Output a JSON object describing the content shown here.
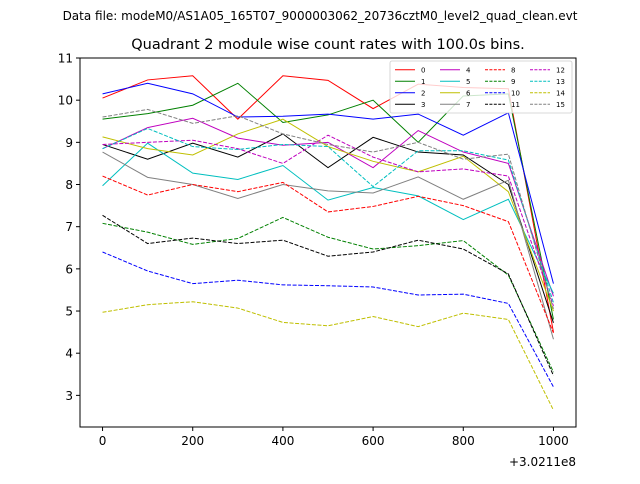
{
  "figure": {
    "suptitle": "Data file: modeM0/AS1A05_165T07_9000003062_20736cztM0_level2_quad_clean.evt"
  },
  "chart_data": {
    "type": "line",
    "title": "Quadrant 2 module wise count rates with 100.0s bins.",
    "xlabel": "",
    "ylabel": "",
    "x_offset_label": "+3.0211e8",
    "x": [
      0,
      100,
      200,
      300,
      400,
      500,
      600,
      700,
      800,
      900,
      1000
    ],
    "xlim": [
      -50,
      1050
    ],
    "ylim": [
      2.25,
      11.0
    ],
    "xticks": [
      0,
      200,
      400,
      600,
      800,
      1000
    ],
    "yticks": [
      3,
      4,
      5,
      6,
      7,
      8,
      9,
      10,
      11
    ],
    "grid": false,
    "legend": {
      "placement": "upper-right",
      "columns": 4
    },
    "series": [
      {
        "name": "0",
        "color": "#ff0000",
        "dash": "solid",
        "values": [
          10.05,
          10.48,
          10.58,
          9.55,
          10.58,
          10.47,
          9.8,
          10.38,
          10.3,
          10.27,
          4.5
        ]
      },
      {
        "name": "1",
        "color": "#008000",
        "dash": "solid",
        "values": [
          9.55,
          9.68,
          9.88,
          10.4,
          9.47,
          9.65,
          10.0,
          9.0,
          10.1,
          10.15,
          4.8
        ]
      },
      {
        "name": "2",
        "color": "#0000ff",
        "dash": "solid",
        "values": [
          10.15,
          10.4,
          10.15,
          9.6,
          9.62,
          9.67,
          9.55,
          9.67,
          9.17,
          9.7,
          5.65
        ]
      },
      {
        "name": "3",
        "color": "#000000",
        "dash": "solid",
        "values": [
          8.95,
          8.6,
          8.98,
          8.65,
          9.2,
          8.4,
          9.12,
          8.77,
          8.7,
          8.0,
          4.72
        ]
      },
      {
        "name": "4",
        "color": "#bf00bf",
        "dash": "solid",
        "values": [
          8.85,
          9.35,
          9.57,
          9.1,
          8.93,
          9.0,
          8.4,
          9.28,
          8.77,
          8.5,
          5.35
        ]
      },
      {
        "name": "5",
        "color": "#00bfbf",
        "dash": "solid",
        "values": [
          7.97,
          8.98,
          8.27,
          8.12,
          8.45,
          7.63,
          7.93,
          7.73,
          7.17,
          7.65,
          5.42
        ]
      },
      {
        "name": "6",
        "color": "#bfbf00",
        "dash": "solid",
        "values": [
          9.13,
          8.85,
          8.7,
          9.2,
          9.55,
          8.9,
          8.55,
          8.3,
          8.67,
          7.83,
          5.0
        ]
      },
      {
        "name": "7",
        "color": "#808080",
        "dash": "solid",
        "values": [
          8.77,
          8.17,
          8.0,
          7.67,
          8.0,
          7.85,
          7.8,
          8.18,
          7.65,
          8.1,
          4.33
        ]
      },
      {
        "name": "8",
        "color": "#ff0000",
        "dash": "dashed",
        "values": [
          8.2,
          7.75,
          8.0,
          7.83,
          8.05,
          7.35,
          7.48,
          7.72,
          7.5,
          7.12,
          4.48
        ]
      },
      {
        "name": "9",
        "color": "#008000",
        "dash": "dashed",
        "values": [
          7.08,
          6.87,
          6.58,
          6.72,
          7.22,
          6.75,
          6.47,
          6.55,
          6.67,
          5.85,
          3.55
        ]
      },
      {
        "name": "10",
        "color": "#0000ff",
        "dash": "dashed",
        "values": [
          6.4,
          5.95,
          5.65,
          5.73,
          5.62,
          5.6,
          5.57,
          5.38,
          5.4,
          5.18,
          3.2
        ]
      },
      {
        "name": "11",
        "color": "#000000",
        "dash": "dashed",
        "values": [
          7.27,
          6.6,
          6.73,
          6.6,
          6.68,
          6.3,
          6.4,
          6.68,
          6.47,
          5.88,
          3.47
        ]
      },
      {
        "name": "12",
        "color": "#bf00bf",
        "dash": "dashed",
        "values": [
          8.95,
          9.0,
          9.05,
          8.85,
          8.5,
          9.17,
          8.65,
          8.3,
          8.37,
          8.2,
          5.12
        ]
      },
      {
        "name": "13",
        "color": "#00bfbf",
        "dash": "dashed",
        "values": [
          8.85,
          9.33,
          8.9,
          8.83,
          8.95,
          8.9,
          7.95,
          8.8,
          8.8,
          8.58,
          5.2
        ]
      },
      {
        "name": "14",
        "color": "#bfbf00",
        "dash": "dashed",
        "values": [
          4.97,
          5.15,
          5.22,
          5.07,
          4.73,
          4.65,
          4.87,
          4.63,
          4.95,
          4.8,
          2.65
        ]
      },
      {
        "name": "15",
        "color": "#808080",
        "dash": "dashed",
        "values": [
          9.6,
          9.78,
          9.45,
          9.63,
          9.2,
          8.95,
          8.77,
          9.0,
          8.6,
          8.72,
          5.05
        ]
      }
    ]
  }
}
